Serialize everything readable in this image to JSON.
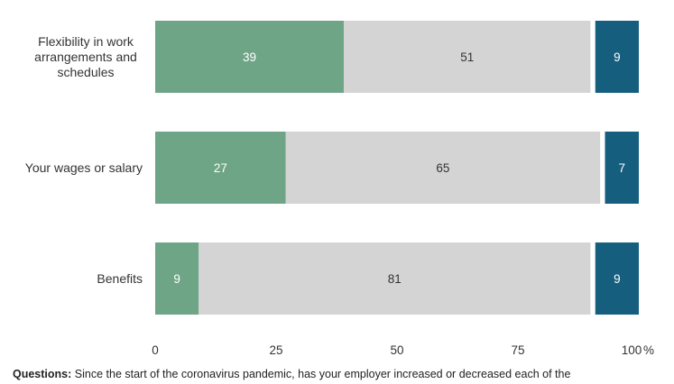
{
  "chart_data": {
    "type": "bar",
    "orientation": "horizontal",
    "stacked": true,
    "categories": [
      [
        "Flexibility in work",
        "arrangements and",
        "schedules"
      ],
      [
        "Your wages or salary"
      ],
      [
        "Benefits"
      ]
    ],
    "series": [
      {
        "values": [
          39,
          27,
          9
        ],
        "color": "#6fa587",
        "label_color": "#ffffff"
      },
      {
        "values": [
          51,
          65,
          81
        ],
        "color": "#d4d4d4",
        "label_color": "#333333"
      },
      {
        "values": [
          9,
          7,
          9
        ],
        "color": "#165e7e",
        "label_color": "#ffffff"
      }
    ],
    "xlim": [
      0,
      100
    ],
    "xticks": [
      0,
      25,
      50,
      75,
      100
    ],
    "xtick_labels": [
      "0",
      "25",
      "50",
      "75",
      "100"
    ],
    "x_unit": "%",
    "grid": false,
    "legend": "none"
  },
  "footnote": {
    "label": "Questions:",
    "text": "Since the start of the coronavirus pandemic, has your employer increased or decreased each of the"
  }
}
